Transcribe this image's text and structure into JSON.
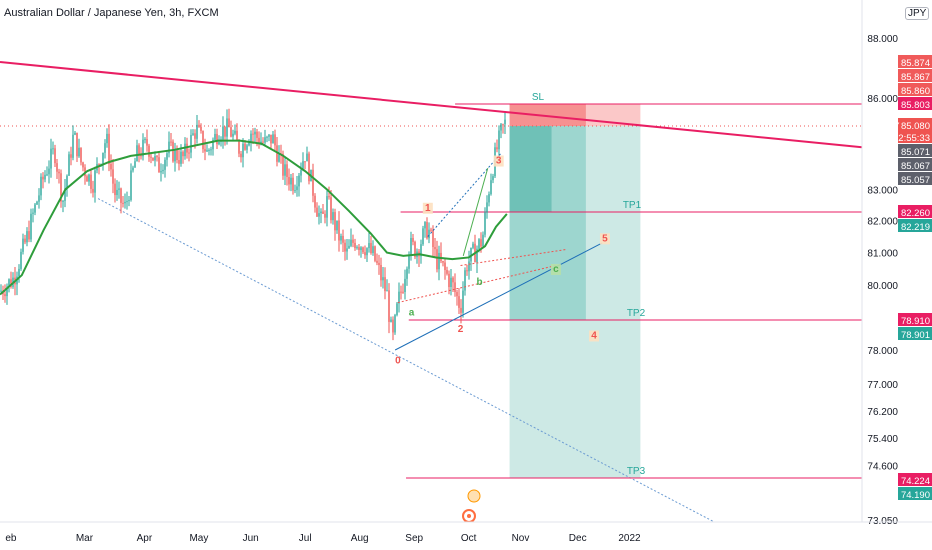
{
  "header": {
    "title": "Australian Dollar / Japanese Yen, 3h, FXCM",
    "currency_button": "JPY",
    "price_cut": "8"
  },
  "colors": {
    "bg": "#ffffff",
    "candle_up": "#26a69a",
    "candle_down": "#ef5350",
    "ma": "#2e9d3b",
    "resistance": "#e91e63",
    "level": "#e91e63",
    "support": "#1e6fb8",
    "dotted": "#6b9bd2",
    "stop": "#f8a6a6",
    "target": "#8fd3cb",
    "text": "#131722",
    "axis_bg": "#ffffff"
  },
  "chart_data": {
    "type": "candlestick",
    "symbol": "AUDJPY",
    "timeframe": "3h",
    "ylim": [
      72.4,
      89.0
    ],
    "y_ticks": [
      88.0,
      86.0,
      83.0,
      82.0,
      81.0,
      80.0,
      78.0,
      77.0,
      76.2,
      75.4,
      74.6,
      73.05
    ],
    "y_tick_labels": [
      "88.000",
      "86.000",
      "83.000",
      "82.000",
      "81.000",
      "80.000",
      "78.000",
      "77.000",
      "76.200",
      "75.400",
      "74.600",
      "73.050"
    ],
    "x_ticks": [
      "eb",
      "Mar",
      "Apr",
      "May",
      "Jun",
      "Jul",
      "Aug",
      "Sep",
      "Oct",
      "Nov",
      "Dec",
      "2022"
    ],
    "x_tick_pos": [
      0.2,
      1.55,
      2.65,
      3.65,
      4.6,
      5.6,
      6.6,
      7.6,
      8.6,
      9.55,
      10.6,
      11.55
    ],
    "price_path": [
      [
        0.0,
        79.8
      ],
      [
        0.25,
        80.2
      ],
      [
        0.5,
        81.5
      ],
      [
        0.8,
        83.4
      ],
      [
        1.0,
        84.3
      ],
      [
        1.15,
        82.6
      ],
      [
        1.35,
        84.8
      ],
      [
        1.5,
        83.8
      ],
      [
        1.7,
        83.2
      ],
      [
        1.95,
        84.7
      ],
      [
        2.1,
        82.9
      ],
      [
        2.3,
        82.4
      ],
      [
        2.5,
        84.1
      ],
      [
        2.7,
        84.5
      ],
      [
        2.9,
        83.7
      ],
      [
        3.1,
        84.3
      ],
      [
        3.35,
        84.0
      ],
      [
        3.6,
        85.0
      ],
      [
        3.8,
        84.2
      ],
      [
        4.0,
        84.9
      ],
      [
        4.2,
        85.0
      ],
      [
        4.4,
        84.3
      ],
      [
        4.6,
        84.9
      ],
      [
        4.85,
        84.5
      ],
      [
        5.0,
        84.7
      ],
      [
        5.2,
        83.6
      ],
      [
        5.4,
        83.2
      ],
      [
        5.6,
        84.2
      ],
      [
        5.8,
        82.5
      ],
      [
        5.9,
        81.9
      ],
      [
        6.0,
        82.6
      ],
      [
        6.2,
        81.6
      ],
      [
        6.35,
        80.9
      ],
      [
        6.5,
        81.4
      ],
      [
        6.7,
        81.2
      ],
      [
        6.85,
        80.9
      ],
      [
        7.0,
        80.2
      ],
      [
        7.1,
        79.7
      ],
      [
        7.2,
        78.2
      ],
      [
        7.3,
        79.4
      ],
      [
        7.4,
        80.1
      ],
      [
        7.5,
        81.2
      ],
      [
        7.65,
        81.1
      ],
      [
        7.85,
        81.8
      ],
      [
        8.0,
        80.8
      ],
      [
        8.1,
        80.6
      ],
      [
        8.3,
        80.0
      ],
      [
        8.45,
        79.3
      ],
      [
        8.55,
        80.6
      ],
      [
        8.7,
        81.0
      ],
      [
        8.85,
        81.4
      ],
      [
        9.0,
        83.4
      ],
      [
        9.1,
        84.2
      ],
      [
        9.2,
        84.9
      ],
      [
        9.3,
        85.3
      ]
    ],
    "moving_average": [
      [
        0.0,
        79.7
      ],
      [
        0.4,
        80.3
      ],
      [
        0.8,
        81.7
      ],
      [
        1.2,
        83.0
      ],
      [
        1.6,
        83.6
      ],
      [
        2.0,
        83.9
      ],
      [
        2.4,
        84.1
      ],
      [
        2.8,
        84.2
      ],
      [
        3.2,
        84.3
      ],
      [
        3.6,
        84.45
      ],
      [
        4.0,
        84.6
      ],
      [
        4.4,
        84.6
      ],
      [
        4.8,
        84.5
      ],
      [
        5.2,
        84.1
      ],
      [
        5.6,
        83.6
      ],
      [
        6.0,
        83.0
      ],
      [
        6.4,
        82.3
      ],
      [
        6.8,
        81.6
      ],
      [
        7.1,
        81.0
      ],
      [
        7.4,
        80.9
      ],
      [
        7.7,
        80.95
      ],
      [
        8.0,
        80.85
      ],
      [
        8.3,
        80.8
      ],
      [
        8.6,
        80.85
      ],
      [
        8.9,
        81.2
      ],
      [
        9.1,
        81.8
      ],
      [
        9.3,
        82.2
      ]
    ],
    "resistance_line": [
      [
        0.0,
        87.2
      ],
      [
        11.2,
        85.2
      ]
    ],
    "support_dotted": [
      [
        1.8,
        82.7
      ],
      [
        13.6,
        72.6
      ]
    ],
    "uptrend_line": [
      [
        7.25,
        78.0
      ],
      [
        11.05,
        81.3
      ]
    ],
    "horizontal_levels": [
      {
        "label": "SL",
        "price": 85.803,
        "x0": 8.35,
        "x1": 17.0
      },
      {
        "label": "TP1",
        "price": 82.26,
        "x0": 7.35,
        "x1": 17.0
      },
      {
        "label": "TP2",
        "price": 78.91,
        "x0": 7.5,
        "x1": 17.0
      },
      {
        "label": "TP3",
        "price": 74.224,
        "x0": 7.45,
        "x1": 17.0
      }
    ],
    "position_box": {
      "x0": 9.35,
      "x1": 11.75,
      "x_split": 10.75,
      "entry": 85.08,
      "stop": 85.803,
      "target_mid": 82.26,
      "target_low": 78.91,
      "target": 74.224
    },
    "wave_labels": [
      {
        "text": "0",
        "x": 7.3,
        "y": 77.6,
        "color": "#ef5350"
      },
      {
        "text": "1",
        "x": 7.85,
        "y": 82.3,
        "color": "#ef5350"
      },
      {
        "text": "2",
        "x": 8.45,
        "y": 78.55,
        "color": "#ef5350"
      },
      {
        "text": "3",
        "x": 9.15,
        "y": 83.85,
        "color": "#ef5350"
      },
      {
        "text": "4",
        "x": 10.9,
        "y": 78.35,
        "color": "#ef5350"
      },
      {
        "text": "5",
        "x": 11.1,
        "y": 81.35,
        "color": "#ef5350"
      },
      {
        "text": "a",
        "x": 7.55,
        "y": 79.05,
        "color": "#4caf50"
      },
      {
        "text": "b",
        "x": 8.8,
        "y": 80.0,
        "color": "#4caf50"
      },
      {
        "text": "c",
        "x": 10.2,
        "y": 80.4,
        "color": "#4caf50"
      }
    ],
    "price_labels": [
      {
        "text": "85.874",
        "price": 85.874,
        "bg": "#f05a5a",
        "fg": "#ffffff"
      },
      {
        "text": "85.867",
        "price": 85.867,
        "bg": "#f05a5a",
        "fg": "#ffffff"
      },
      {
        "text": "85.860",
        "price": 85.86,
        "bg": "#f05a5a",
        "fg": "#ffffff"
      },
      {
        "text": "85.803",
        "price": 85.803,
        "bg": "#e91e63",
        "fg": "#ffffff"
      },
      {
        "text": "85.080",
        "price": 85.08,
        "bg": "#ef5350",
        "fg": "#ffffff"
      },
      {
        "text": "02:55:33",
        "price": 84.88,
        "bg": "#ef5350",
        "fg": "#ffffff"
      },
      {
        "text": "85.071",
        "price": 85.071,
        "bg": "#5d606b",
        "fg": "#ffffff"
      },
      {
        "text": "85.067",
        "price": 85.067,
        "bg": "#5d606b",
        "fg": "#ffffff"
      },
      {
        "text": "85.057",
        "price": 85.057,
        "bg": "#5d606b",
        "fg": "#ffffff"
      },
      {
        "text": "82.260",
        "price": 82.26,
        "bg": "#e91e63",
        "fg": "#ffffff"
      },
      {
        "text": "82.219",
        "price": 82.219,
        "bg": "#26a69a",
        "fg": "#ffffff"
      },
      {
        "text": "78.910",
        "price": 78.91,
        "bg": "#e91e63",
        "fg": "#ffffff"
      },
      {
        "text": "78.901",
        "price": 78.901,
        "bg": "#26a69a",
        "fg": "#ffffff"
      },
      {
        "text": "74.224",
        "price": 74.224,
        "bg": "#e91e63",
        "fg": "#ffffff"
      },
      {
        "text": "74.190",
        "price": 74.19,
        "bg": "#26a69a",
        "fg": "#ffffff"
      }
    ],
    "symbol_tag": "AUDJPY",
    "current_price": 85.08
  }
}
